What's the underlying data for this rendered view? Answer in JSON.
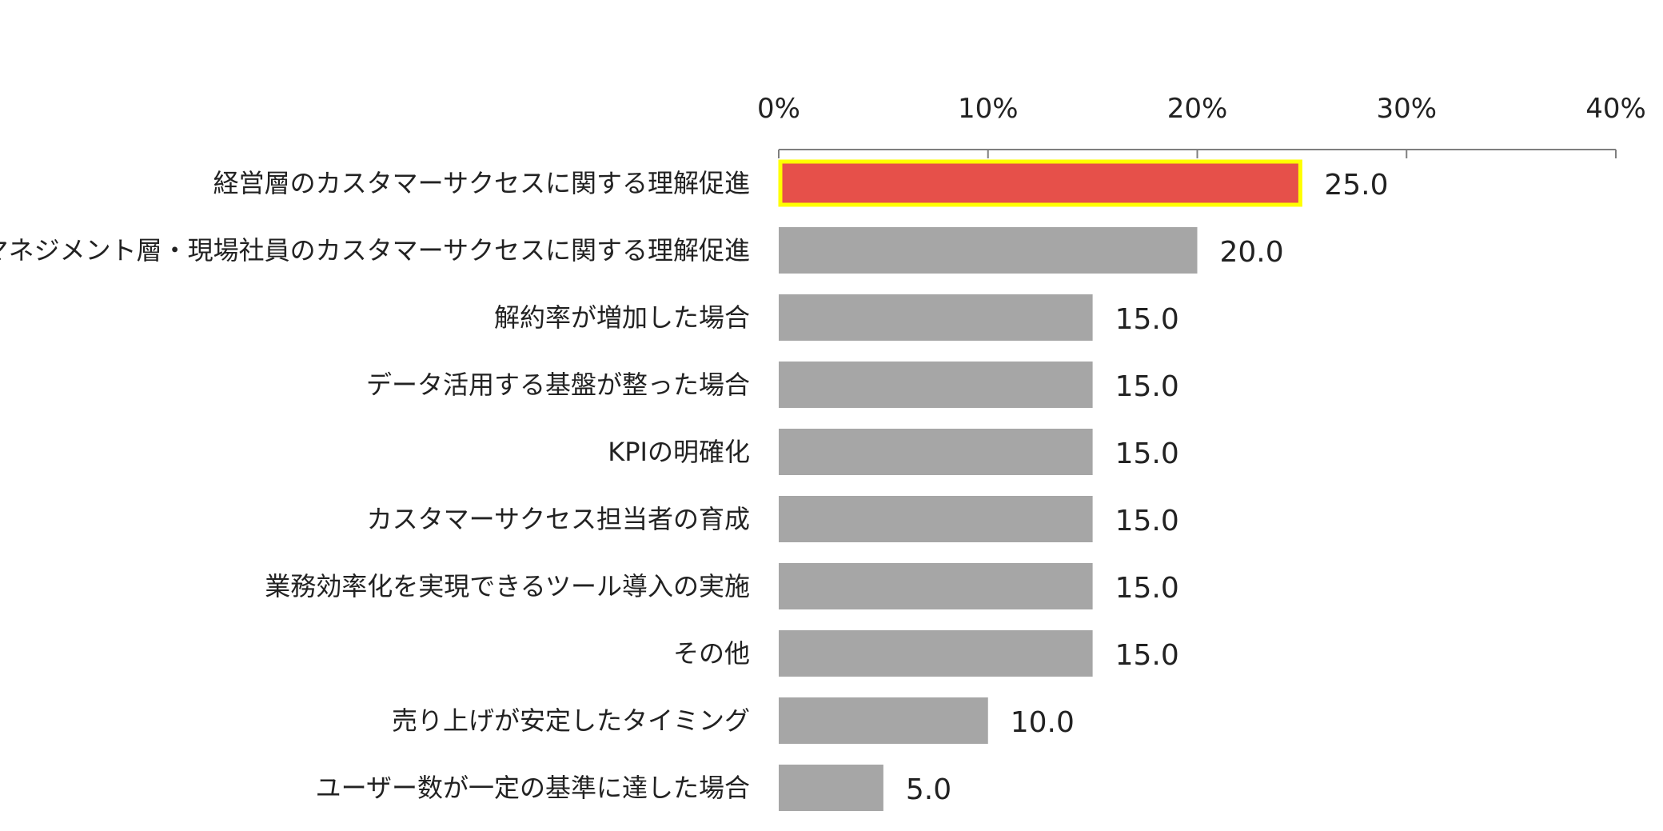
{
  "chart_data": {
    "type": "bar",
    "orientation": "horizontal",
    "title": "",
    "xlabel": "",
    "ylabel": "",
    "xlim": [
      0,
      40
    ],
    "x_ticks": [
      0,
      10,
      20,
      30,
      40
    ],
    "x_tick_labels": [
      "0%",
      "10%",
      "20%",
      "30%",
      "40%"
    ],
    "axis_position": "top",
    "grid": false,
    "legend": "none",
    "categories": [
      "経営層のカスタマーサクセスに関する理解促進",
      "マネジメント層・現場社員のカスタマーサクセスに関する理解促進",
      "解約率が増加した場合",
      "データ活用する基盤が整った場合",
      "KPIの明確化",
      "カスタマーサクセス担当者の育成",
      "業務効率化を実現できるツール導入の実施",
      "その他",
      "売り上げが安定したタイミング",
      "ユーザー数が一定の基準に達した場合"
    ],
    "values": [
      25.0,
      20.0,
      15.0,
      15.0,
      15.0,
      15.0,
      15.0,
      15.0,
      10.0,
      5.0
    ],
    "value_labels": [
      "25.0",
      "20.0",
      "15.0",
      "15.0",
      "15.0",
      "15.0",
      "15.0",
      "15.0",
      "10.0",
      "5.0"
    ],
    "highlight_index": 0,
    "colors": {
      "bar": "#a6a6a6",
      "highlight_fill": "#e6504a",
      "highlight_border": "#ffff00",
      "axis": "#7f7f7f",
      "text": "#222222"
    }
  }
}
